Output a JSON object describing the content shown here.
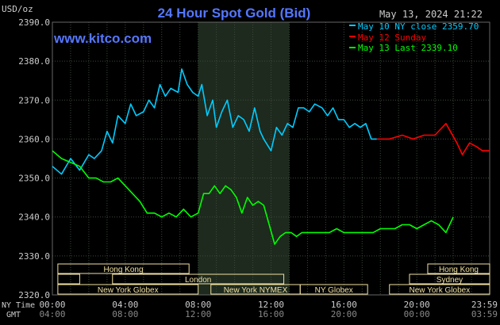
{
  "colors": {
    "background": "#000000",
    "plot_bg": "#000000",
    "shade": "#1e2a1e",
    "grid": "#3a4a3a",
    "title": "#5577ff",
    "watermark": "#5577ff",
    "text": "#cccccc",
    "session_box": "#f0e0a0",
    "session_text": "#000000",
    "series_may10": "#00ccff",
    "series_may12": "#ff0000",
    "series_may13": "#00ff00"
  },
  "header": {
    "unit": "USD/oz",
    "title": "24 Hour Spot Gold (Bid)",
    "watermark": "www.kitco.com",
    "timestamp": "May 13, 2024 21:22"
  },
  "axis_labels": {
    "ny_time": "NY Time",
    "gmt": "GMT"
  },
  "chart_data": {
    "type": "line",
    "title": "24 Hour Spot Gold (Bid)",
    "ylabel": "USD/oz",
    "xlabel": "",
    "ylim": [
      2320,
      2390
    ],
    "xlim": [
      0,
      24
    ],
    "yticks": [
      "2320.0",
      "2330.0",
      "2340.0",
      "2350.0",
      "2360.0",
      "2370.0",
      "2380.0",
      "2390.0"
    ],
    "ytick_values": [
      2320,
      2330,
      2340,
      2350,
      2360,
      2370,
      2380,
      2390
    ],
    "xticks_ny": [
      "00:00",
      "04:00",
      "08:00",
      "12:00",
      "16:00",
      "20:00",
      "23:59"
    ],
    "xticks_gmt": [
      "04:00",
      "08:00",
      "12:00",
      "16:00",
      "20:00",
      "00:00",
      "03:59"
    ],
    "xtick_values": [
      0,
      4,
      8,
      12,
      16,
      20,
      24
    ],
    "grid": true,
    "legend_position": "top-right",
    "shaded_region": [
      8.0,
      13.0
    ],
    "series": [
      {
        "name": "May 10 NY close 2359.70",
        "color": "#00ccff",
        "x": [
          0,
          0.5,
          1.0,
          1.5,
          2.0,
          2.3,
          2.7,
          3.0,
          3.3,
          3.6,
          4.0,
          4.3,
          4.6,
          5.0,
          5.3,
          5.6,
          5.9,
          6.2,
          6.5,
          6.9,
          7.1,
          7.4,
          7.7,
          8.0,
          8.2,
          8.5,
          8.8,
          9.0,
          9.3,
          9.6,
          9.9,
          10.2,
          10.5,
          10.8,
          11.1,
          11.4,
          11.6,
          12.0,
          12.3,
          12.6,
          12.9,
          13.2,
          13.5,
          13.8,
          14.1,
          14.4,
          14.8,
          15.1,
          15.4,
          15.7,
          16.0,
          16.3,
          16.6,
          16.9,
          17.2,
          17.5,
          17.8
        ],
        "y": [
          2353,
          2351,
          2355,
          2352,
          2356,
          2355,
          2357,
          2362,
          2359,
          2366,
          2364,
          2369,
          2366,
          2367,
          2370,
          2368,
          2374,
          2371,
          2373,
          2372,
          2378,
          2374,
          2372,
          2371,
          2374,
          2366,
          2370,
          2363,
          2367,
          2370,
          2363,
          2366,
          2365,
          2362,
          2368,
          2362,
          2360,
          2357,
          2363,
          2361,
          2364,
          2363,
          2368,
          2368,
          2367,
          2369,
          2368,
          2366,
          2368,
          2365,
          2365,
          2363,
          2364,
          2363,
          2364,
          2360,
          2360
        ]
      },
      {
        "name": "May 12 Sunday",
        "color": "#ff0000",
        "x": [
          17.8,
          18.5,
          19.2,
          19.8,
          20.4,
          21.0,
          21.6,
          22.2,
          22.5,
          22.9,
          23.3,
          23.6,
          24.0
        ],
        "y": [
          2360,
          2360,
          2361,
          2360,
          2361,
          2361,
          2364,
          2359,
          2356,
          2359,
          2358,
          2357,
          2357
        ]
      },
      {
        "name": "May 13 Last 2339.10",
        "color": "#00ff00",
        "x": [
          0,
          0.5,
          1.0,
          1.5,
          2.0,
          2.4,
          2.8,
          3.2,
          3.6,
          4.0,
          4.4,
          4.8,
          5.2,
          5.6,
          6.0,
          6.4,
          6.8,
          7.2,
          7.6,
          8.0,
          8.3,
          8.6,
          8.9,
          9.2,
          9.5,
          9.8,
          10.1,
          10.4,
          10.7,
          11.0,
          11.3,
          11.6,
          11.9,
          12.2,
          12.5,
          12.8,
          13.1,
          13.4,
          13.7,
          14.0,
          14.4,
          14.8,
          15.2,
          15.6,
          16.0,
          16.4,
          16.8,
          17.2,
          17.6,
          18.0,
          18.4,
          18.8,
          19.2,
          19.6,
          20.0,
          20.4,
          20.8,
          21.2,
          21.6,
          22.0
        ],
        "y": [
          2357,
          2355,
          2354,
          2353,
          2350,
          2350,
          2349,
          2349,
          2350,
          2348,
          2346,
          2344,
          2341,
          2341,
          2340,
          2341,
          2340,
          2342,
          2340,
          2341,
          2346,
          2346,
          2348,
          2346,
          2348,
          2347,
          2345,
          2341,
          2345,
          2343,
          2344,
          2343,
          2338,
          2333,
          2335,
          2336,
          2336,
          2335,
          2336,
          2336,
          2336,
          2336,
          2336,
          2337,
          2336,
          2336,
          2336,
          2336,
          2336,
          2337,
          2337,
          2337,
          2338,
          2338,
          2337,
          2338,
          2339,
          2338,
          2336,
          2340
        ]
      }
    ]
  },
  "sessions": [
    {
      "name": "Hong Kong",
      "row": 0,
      "start": 0.3,
      "end": 7.5
    },
    {
      "name": "Hong Kong",
      "row": 0,
      "start": 20.6,
      "end": 24.0
    },
    {
      "name": "",
      "row": 1,
      "start": 0.3,
      "end": 1.5
    },
    {
      "name": "London",
      "row": 1,
      "start": 3.3,
      "end": 12.7
    },
    {
      "name": "Sydney",
      "row": 1,
      "start": 19.6,
      "end": 24.0
    },
    {
      "name": "New York Globex",
      "row": 2,
      "start": 0.3,
      "end": 8.0
    },
    {
      "name": "New York NYMEX",
      "row": 2,
      "start": 8.7,
      "end": 13.6
    },
    {
      "name": "NY Globex",
      "row": 2,
      "start": 13.6,
      "end": 17.3
    },
    {
      "name": "New York Globex",
      "row": 2,
      "start": 18.5,
      "end": 24.0
    }
  ]
}
